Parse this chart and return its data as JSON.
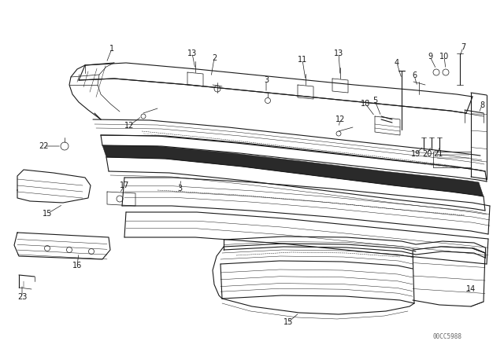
{
  "bg_color": "#ffffff",
  "line_color": "#1a1a1a",
  "watermark": "00CC5988",
  "font_size_labels": 7,
  "font_size_watermark": 5.5
}
